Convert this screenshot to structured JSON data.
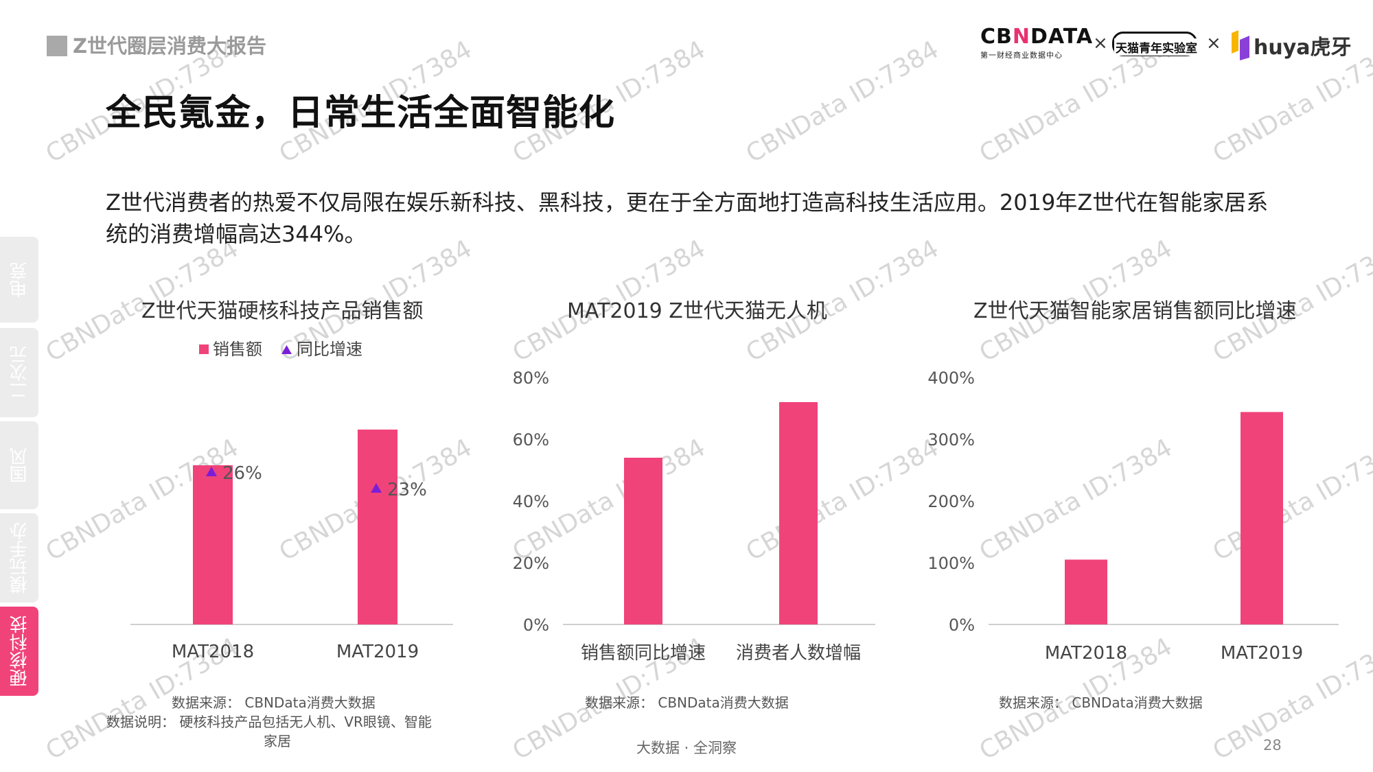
{
  "header": {
    "report_title": "Z世代圈层消费大报告",
    "main_title": "全民氪金，日常生活全面智能化"
  },
  "logos": {
    "cbndata_name": "CBNDATA",
    "cbndata_sub": "第一财经商业数据中心",
    "times": "×",
    "tmall_lab": "天猫青年实验室",
    "huya": "huya虎牙"
  },
  "description": "Z世代消费者的热爱不仅局限在娱乐新科技、黑科技，更在于全方面地打造高科技生活应用。2019年Z世代在智能家居系统的消费增幅高达344%。",
  "side_nav": [
    {
      "label": "电竞",
      "active": false
    },
    {
      "label": "二次元",
      "active": false
    },
    {
      "label": "国风",
      "active": false
    },
    {
      "label": "模玩手办",
      "active": false
    },
    {
      "label": "硬核科技",
      "active": true
    }
  ],
  "watermark": "CBNData ID:7384",
  "colors": {
    "bar": "#f0437a",
    "marker": "#7a1fd6",
    "active_tab": "#f0437a"
  },
  "chart_data": [
    {
      "type": "bar",
      "title": "Z世代天猫硬核科技产品销售额",
      "categories": [
        "MAT2018",
        "MAT2019"
      ],
      "series": [
        {
          "name": "销售额",
          "values": [
            0.58,
            0.71
          ]
        },
        {
          "name": "同比增速",
          "values": [
            26,
            23
          ],
          "labels": [
            "26%",
            "23%"
          ],
          "marker": "triangle"
        }
      ],
      "legend": "top",
      "source": "数据来源： CBNData消费大数据",
      "note_line1": "数据说明： 硬核科技产品包括无人机、VR眼镜、智能",
      "note_line2": "家居"
    },
    {
      "type": "bar",
      "title": "MAT2019 Z世代天猫无人机",
      "categories": [
        "销售额同比增速",
        "消费者人数增幅"
      ],
      "values": [
        54,
        72
      ],
      "ylim": [
        0,
        80
      ],
      "yticks": [
        "0%",
        "20%",
        "40%",
        "60%",
        "80%"
      ],
      "source": "数据来源： CBNData消费大数据"
    },
    {
      "type": "bar",
      "title": "Z世代天猫智能家居销售额同比增速",
      "categories": [
        "MAT2018",
        "MAT2019"
      ],
      "values": [
        105,
        344
      ],
      "ylim": [
        0,
        400
      ],
      "yticks": [
        "0%",
        "100%",
        "200%",
        "300%",
        "400%"
      ],
      "source": "数据来源： CBNData消费大数据"
    }
  ],
  "footer": {
    "tagline": "大数据 · 全洞察",
    "page": "28"
  }
}
